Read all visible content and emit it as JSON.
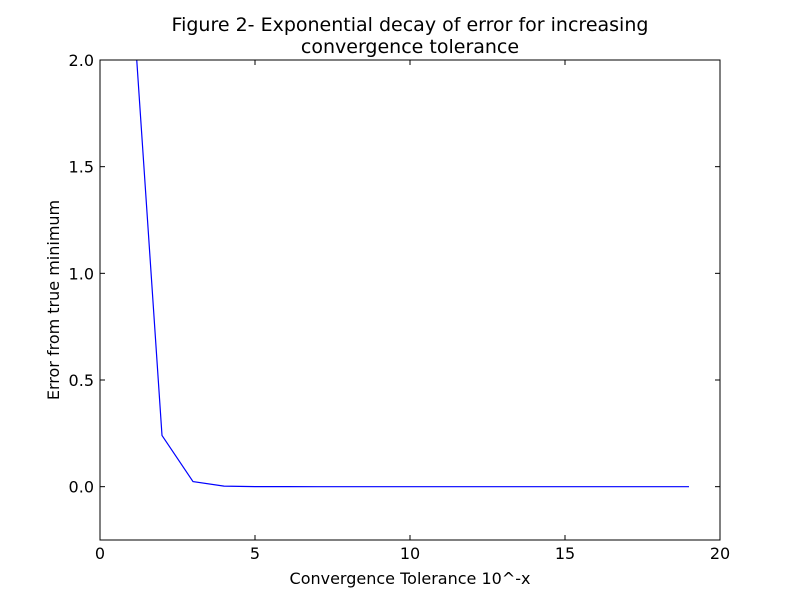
{
  "chart_data": {
    "type": "line",
    "title": "Figure 2- Exponential decay of error for increasing convergence tolerance",
    "title_lines": [
      "Figure 2- Exponential decay of error for increasing",
      "convergence tolerance"
    ],
    "xlabel": "Convergence Tolerance 10^-x",
    "ylabel": "Error from true minimum",
    "xlim": [
      0,
      20
    ],
    "ylim": [
      -0.25,
      2.0
    ],
    "x_ticks": [
      0,
      5,
      10,
      15,
      20
    ],
    "y_ticks": [
      0.0,
      0.5,
      1.0,
      1.5,
      2.0
    ],
    "x_tick_labels": [
      "0",
      "5",
      "10",
      "15",
      "20"
    ],
    "y_tick_labels": [
      "0.0",
      "0.5",
      "1.0",
      "1.5",
      "2.0"
    ],
    "grid": false,
    "series": [
      {
        "color": "#0000ff",
        "x": [
          1,
          2,
          3,
          4,
          5,
          6,
          7,
          8,
          9,
          10,
          11,
          12,
          13,
          14,
          15,
          16,
          17,
          18,
          19
        ],
        "y": [
          2.4,
          0.24,
          0.024,
          0.0024,
          0.00024,
          2.4e-05,
          2.4e-06,
          2.4e-07,
          2.4e-08,
          2.4e-09,
          0,
          0,
          0,
          0,
          0,
          0,
          0,
          0,
          0
        ]
      }
    ]
  }
}
